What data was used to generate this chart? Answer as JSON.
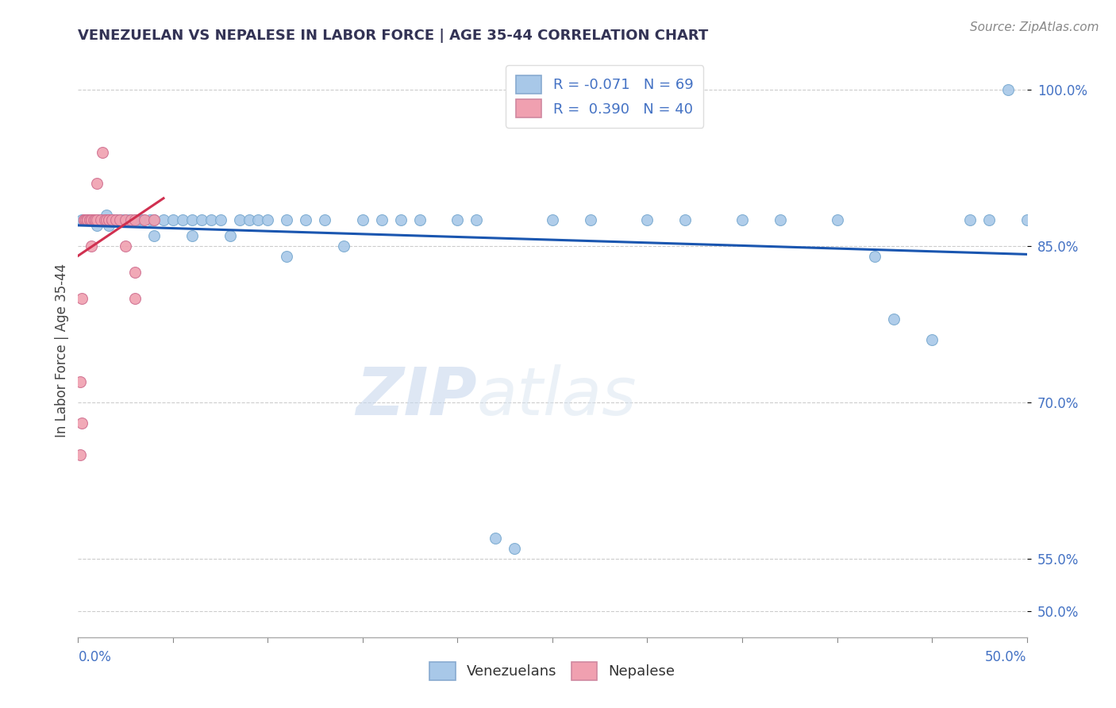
{
  "title": "VENEZUELAN VS NEPALESE IN LABOR FORCE | AGE 35-44 CORRELATION CHART",
  "source": "Source: ZipAtlas.com",
  "ylabel": "In Labor Force | Age 35-44",
  "ytick_labels": [
    "50.0%",
    "55.0%",
    "70.0%",
    "85.0%",
    "100.0%"
  ],
  "ytick_values": [
    0.5,
    0.55,
    0.7,
    0.85,
    1.0
  ],
  "xlim": [
    0.0,
    0.5
  ],
  "ylim": [
    0.475,
    1.025
  ],
  "blue_color": "#a8c8e8",
  "pink_color": "#f0a0b0",
  "trend_blue": "#1a56b0",
  "trend_pink": "#d03050",
  "watermark_zip": "ZIP",
  "watermark_atlas": "atlas",
  "venezuelan_points": [
    [
      0.002,
      0.875
    ],
    [
      0.004,
      0.875
    ],
    [
      0.005,
      0.875
    ],
    [
      0.006,
      0.875
    ],
    [
      0.007,
      0.875
    ],
    [
      0.008,
      0.875
    ],
    [
      0.009,
      0.875
    ],
    [
      0.01,
      0.875
    ],
    [
      0.01,
      0.87
    ],
    [
      0.011,
      0.875
    ],
    [
      0.012,
      0.875
    ],
    [
      0.013,
      0.875
    ],
    [
      0.014,
      0.875
    ],
    [
      0.015,
      0.88
    ],
    [
      0.016,
      0.87
    ],
    [
      0.017,
      0.875
    ],
    [
      0.018,
      0.875
    ],
    [
      0.019,
      0.875
    ],
    [
      0.02,
      0.875
    ],
    [
      0.022,
      0.875
    ],
    [
      0.024,
      0.875
    ],
    [
      0.025,
      0.875
    ],
    [
      0.027,
      0.875
    ],
    [
      0.03,
      0.875
    ],
    [
      0.032,
      0.875
    ],
    [
      0.034,
      0.875
    ],
    [
      0.038,
      0.875
    ],
    [
      0.04,
      0.875
    ],
    [
      0.04,
      0.86
    ],
    [
      0.045,
      0.875
    ],
    [
      0.05,
      0.875
    ],
    [
      0.055,
      0.875
    ],
    [
      0.06,
      0.875
    ],
    [
      0.06,
      0.86
    ],
    [
      0.065,
      0.875
    ],
    [
      0.07,
      0.875
    ],
    [
      0.075,
      0.875
    ],
    [
      0.08,
      0.86
    ],
    [
      0.085,
      0.875
    ],
    [
      0.09,
      0.875
    ],
    [
      0.095,
      0.875
    ],
    [
      0.1,
      0.875
    ],
    [
      0.11,
      0.875
    ],
    [
      0.11,
      0.84
    ],
    [
      0.12,
      0.875
    ],
    [
      0.13,
      0.875
    ],
    [
      0.14,
      0.85
    ],
    [
      0.15,
      0.875
    ],
    [
      0.16,
      0.875
    ],
    [
      0.17,
      0.875
    ],
    [
      0.18,
      0.875
    ],
    [
      0.2,
      0.875
    ],
    [
      0.21,
      0.875
    ],
    [
      0.22,
      0.57
    ],
    [
      0.23,
      0.56
    ],
    [
      0.25,
      0.875
    ],
    [
      0.27,
      0.875
    ],
    [
      0.3,
      0.875
    ],
    [
      0.32,
      0.875
    ],
    [
      0.35,
      0.875
    ],
    [
      0.37,
      0.875
    ],
    [
      0.4,
      0.875
    ],
    [
      0.42,
      0.84
    ],
    [
      0.43,
      0.78
    ],
    [
      0.45,
      0.76
    ],
    [
      0.47,
      0.875
    ],
    [
      0.48,
      0.875
    ],
    [
      0.49,
      1.0
    ],
    [
      0.5,
      0.875
    ]
  ],
  "nepalese_points": [
    [
      0.001,
      0.65
    ],
    [
      0.001,
      0.72
    ],
    [
      0.002,
      0.8
    ],
    [
      0.002,
      0.68
    ],
    [
      0.003,
      0.875
    ],
    [
      0.003,
      0.875
    ],
    [
      0.003,
      0.875
    ],
    [
      0.004,
      0.875
    ],
    [
      0.004,
      0.875
    ],
    [
      0.005,
      0.875
    ],
    [
      0.005,
      0.875
    ],
    [
      0.005,
      0.875
    ],
    [
      0.006,
      0.875
    ],
    [
      0.006,
      0.875
    ],
    [
      0.007,
      0.875
    ],
    [
      0.007,
      0.85
    ],
    [
      0.007,
      0.875
    ],
    [
      0.008,
      0.875
    ],
    [
      0.009,
      0.875
    ],
    [
      0.009,
      0.875
    ],
    [
      0.01,
      0.91
    ],
    [
      0.01,
      0.875
    ],
    [
      0.012,
      0.875
    ],
    [
      0.013,
      0.94
    ],
    [
      0.014,
      0.875
    ],
    [
      0.015,
      0.875
    ],
    [
      0.016,
      0.875
    ],
    [
      0.016,
      0.875
    ],
    [
      0.018,
      0.875
    ],
    [
      0.018,
      0.875
    ],
    [
      0.02,
      0.875
    ],
    [
      0.022,
      0.875
    ],
    [
      0.025,
      0.85
    ],
    [
      0.025,
      0.875
    ],
    [
      0.028,
      0.875
    ],
    [
      0.03,
      0.875
    ],
    [
      0.03,
      0.825
    ],
    [
      0.03,
      0.8
    ],
    [
      0.035,
      0.875
    ],
    [
      0.04,
      0.875
    ]
  ]
}
